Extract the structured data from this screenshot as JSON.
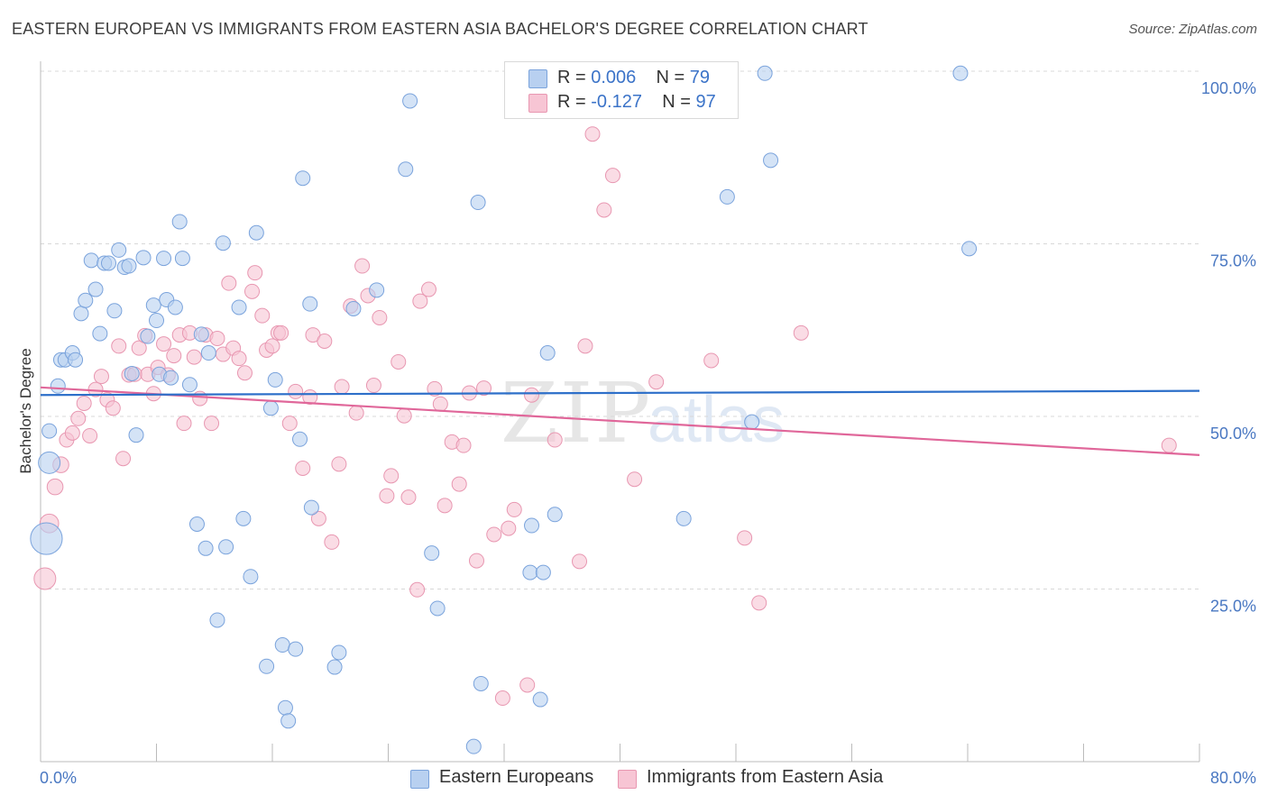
{
  "title": "EASTERN EUROPEAN VS IMMIGRANTS FROM EASTERN ASIA BACHELOR'S DEGREE CORRELATION CHART",
  "source": "Source: ZipAtlas.com",
  "watermark": {
    "zip": "ZIP",
    "atlas": "atlas"
  },
  "legend": {
    "rows": [
      {
        "r_label": "R =",
        "r_value": "0.006",
        "n_label": "N =",
        "n_value": "79"
      },
      {
        "r_label": "R =",
        "r_value": "-0.127",
        "n_label": "N =",
        "n_value": "97"
      }
    ]
  },
  "bottom_legend": {
    "series1": "Eastern Europeans",
    "series2": "Immigrants from Eastern Asia"
  },
  "colors": {
    "blue_fill": "#b8d0f0",
    "blue_stroke": "#7aa3dc",
    "blue_line": "#2d6fc9",
    "pink_fill": "#f7c5d4",
    "pink_stroke": "#e897b1",
    "pink_line": "#e0679a",
    "tick_text": "#4a78c2",
    "grid": "#d8d8d8"
  },
  "chart_data": {
    "type": "scatter",
    "title": "EASTERN EUROPEAN VS IMMIGRANTS FROM EASTERN ASIA BACHELOR'S DEGREE CORRELATION CHART",
    "xlabel": "",
    "ylabel": "Bachelor's Degree",
    "xlim": [
      0,
      80
    ],
    "ylim": [
      0,
      100
    ],
    "x_tick_labels": [
      "0.0%",
      "80.0%"
    ],
    "y_tick_labels": [
      "100.0%",
      "75.0%",
      "50.0%",
      "25.0%"
    ],
    "y_ticks": [
      100,
      75,
      50,
      25
    ],
    "grid": true,
    "legend_position": "top-center",
    "series": [
      {
        "name": "Eastern Europeans",
        "R": 0.006,
        "N": 79,
        "trend": [
          [
            0,
            53.1
          ],
          [
            80,
            53.7
          ]
        ],
        "points": [
          [
            0.6,
            47.9,
            1
          ],
          [
            0.6,
            43.3,
            1.5
          ],
          [
            0.4,
            32.3,
            2.2
          ],
          [
            1.2,
            54.4,
            1
          ],
          [
            1.4,
            58.2,
            1
          ],
          [
            1.7,
            58.2,
            1
          ],
          [
            2.2,
            59.2,
            1
          ],
          [
            2.4,
            58.2,
            1
          ],
          [
            2.8,
            64.9,
            1
          ],
          [
            3.1,
            66.8,
            1
          ],
          [
            3.5,
            72.6,
            1
          ],
          [
            3.8,
            68.4,
            1
          ],
          [
            4.1,
            62.0,
            1
          ],
          [
            4.4,
            72.2,
            1
          ],
          [
            4.7,
            72.2,
            1
          ],
          [
            5.1,
            65.3,
            1
          ],
          [
            5.4,
            74.1,
            1
          ],
          [
            5.8,
            71.6,
            1
          ],
          [
            6.1,
            71.8,
            1
          ],
          [
            6.3,
            56.2,
            1
          ],
          [
            6.6,
            47.3,
            1
          ],
          [
            7.1,
            73.0,
            1
          ],
          [
            7.4,
            61.6,
            1
          ],
          [
            7.8,
            66.1,
            1
          ],
          [
            8.0,
            63.9,
            1
          ],
          [
            8.2,
            56.1,
            1
          ],
          [
            8.5,
            72.9,
            1
          ],
          [
            8.7,
            66.9,
            1
          ],
          [
            9.0,
            55.6,
            1
          ],
          [
            9.3,
            65.8,
            1
          ],
          [
            9.6,
            78.2,
            1
          ],
          [
            9.8,
            72.9,
            1
          ],
          [
            10.3,
            54.6,
            1
          ],
          [
            10.8,
            34.4,
            1
          ],
          [
            11.1,
            61.9,
            1
          ],
          [
            11.4,
            30.9,
            1
          ],
          [
            11.6,
            59.2,
            1
          ],
          [
            12.2,
            20.5,
            1
          ],
          [
            12.6,
            75.1,
            1
          ],
          [
            12.8,
            31.1,
            1
          ],
          [
            13.7,
            65.8,
            1
          ],
          [
            14.0,
            35.2,
            1
          ],
          [
            14.5,
            26.8,
            1
          ],
          [
            14.9,
            76.6,
            1
          ],
          [
            15.6,
            13.8,
            1
          ],
          [
            15.9,
            51.2,
            1
          ],
          [
            16.2,
            55.3,
            1
          ],
          [
            16.7,
            16.9,
            1
          ],
          [
            16.9,
            7.8,
            1
          ],
          [
            17.1,
            5.9,
            1
          ],
          [
            17.6,
            16.3,
            1
          ],
          [
            17.9,
            46.7,
            1
          ],
          [
            18.1,
            84.5,
            1
          ],
          [
            18.6,
            66.3,
            1
          ],
          [
            18.7,
            36.8,
            1
          ],
          [
            20.3,
            13.7,
            1
          ],
          [
            20.6,
            15.8,
            1
          ],
          [
            21.6,
            65.6,
            1
          ],
          [
            23.2,
            68.3,
            1
          ],
          [
            25.2,
            85.8,
            1
          ],
          [
            25.5,
            95.7,
            1
          ],
          [
            27.0,
            30.2,
            1
          ],
          [
            27.4,
            22.2,
            1
          ],
          [
            29.9,
            2.2,
            1
          ],
          [
            30.2,
            81.0,
            1
          ],
          [
            30.4,
            11.3,
            1
          ],
          [
            33.8,
            27.4,
            1
          ],
          [
            33.9,
            34.2,
            1
          ],
          [
            34.5,
            9.0,
            1
          ],
          [
            34.7,
            27.4,
            1
          ],
          [
            35.0,
            59.2,
            1
          ],
          [
            35.5,
            35.8,
            1
          ],
          [
            44.4,
            35.2,
            1
          ],
          [
            47.4,
            81.8,
            1
          ],
          [
            49.1,
            49.2,
            1
          ],
          [
            50.0,
            99.7,
            1
          ],
          [
            50.4,
            87.1,
            1
          ],
          [
            63.5,
            99.7,
            1
          ],
          [
            64.1,
            74.3,
            1
          ]
        ]
      },
      {
        "name": "Immigrants from Eastern Asia",
        "R": -0.127,
        "N": 97,
        "trend": [
          [
            0,
            54.2
          ],
          [
            80,
            44.4
          ]
        ],
        "points": [
          [
            0.3,
            26.5,
            1.5
          ],
          [
            0.6,
            34.5,
            1.3
          ],
          [
            1.0,
            39.8,
            1.1
          ],
          [
            1.4,
            43.0,
            1.1
          ],
          [
            1.8,
            46.6,
            1
          ],
          [
            2.2,
            47.6,
            1
          ],
          [
            2.6,
            49.7,
            1
          ],
          [
            3.0,
            51.9,
            1
          ],
          [
            3.4,
            47.2,
            1
          ],
          [
            3.8,
            53.9,
            1
          ],
          [
            4.2,
            55.8,
            1
          ],
          [
            4.6,
            52.4,
            1
          ],
          [
            5.0,
            51.2,
            1
          ],
          [
            5.4,
            60.2,
            1
          ],
          [
            5.7,
            43.9,
            1
          ],
          [
            6.1,
            56.0,
            1
          ],
          [
            6.5,
            56.1,
            1
          ],
          [
            6.8,
            59.9,
            1
          ],
          [
            7.2,
            61.7,
            1
          ],
          [
            7.4,
            56.1,
            1
          ],
          [
            7.8,
            53.3,
            1
          ],
          [
            8.1,
            57.1,
            1
          ],
          [
            8.5,
            60.5,
            1
          ],
          [
            8.8,
            56.0,
            1
          ],
          [
            9.2,
            58.8,
            1
          ],
          [
            9.6,
            61.8,
            1
          ],
          [
            9.9,
            49.0,
            1
          ],
          [
            10.3,
            62.1,
            1
          ],
          [
            10.6,
            58.6,
            1
          ],
          [
            11.0,
            52.6,
            1
          ],
          [
            11.4,
            61.8,
            1
          ],
          [
            11.8,
            49.0,
            1
          ],
          [
            12.2,
            61.3,
            1
          ],
          [
            12.6,
            59.0,
            1
          ],
          [
            13.0,
            69.3,
            1
          ],
          [
            13.3,
            59.9,
            1
          ],
          [
            13.7,
            58.4,
            1
          ],
          [
            14.1,
            56.3,
            1
          ],
          [
            14.6,
            68.1,
            1
          ],
          [
            14.8,
            70.8,
            1
          ],
          [
            15.3,
            64.6,
            1
          ],
          [
            15.6,
            59.6,
            1
          ],
          [
            16.0,
            60.2,
            1
          ],
          [
            16.4,
            62.1,
            1
          ],
          [
            16.6,
            62.1,
            1
          ],
          [
            17.2,
            49.0,
            1
          ],
          [
            17.6,
            53.6,
            1
          ],
          [
            18.1,
            42.5,
            1
          ],
          [
            18.6,
            52.8,
            1
          ],
          [
            18.8,
            61.8,
            1
          ],
          [
            19.2,
            35.2,
            1
          ],
          [
            19.6,
            60.9,
            1
          ],
          [
            20.1,
            31.8,
            1
          ],
          [
            20.6,
            43.1,
            1
          ],
          [
            20.8,
            54.3,
            1
          ],
          [
            21.4,
            66.0,
            1
          ],
          [
            21.8,
            50.5,
            1
          ],
          [
            22.2,
            71.8,
            1
          ],
          [
            22.6,
            67.5,
            1
          ],
          [
            23.0,
            54.5,
            1
          ],
          [
            23.4,
            64.3,
            1
          ],
          [
            23.9,
            38.5,
            1
          ],
          [
            24.2,
            41.4,
            1
          ],
          [
            24.7,
            57.9,
            1
          ],
          [
            25.1,
            50.1,
            1
          ],
          [
            25.4,
            38.3,
            1
          ],
          [
            26.0,
            24.9,
            1
          ],
          [
            26.2,
            66.7,
            1
          ],
          [
            26.8,
            68.4,
            1
          ],
          [
            27.2,
            54.0,
            1
          ],
          [
            27.6,
            51.8,
            1
          ],
          [
            27.9,
            37.1,
            1
          ],
          [
            28.4,
            46.3,
            1
          ],
          [
            28.9,
            40.2,
            1
          ],
          [
            29.2,
            45.8,
            1
          ],
          [
            29.6,
            53.4,
            1
          ],
          [
            30.1,
            29.1,
            1
          ],
          [
            30.6,
            54.1,
            1
          ],
          [
            31.3,
            32.9,
            1
          ],
          [
            31.9,
            9.2,
            1
          ],
          [
            32.3,
            33.8,
            1
          ],
          [
            32.7,
            36.5,
            1
          ],
          [
            33.6,
            11.1,
            1
          ],
          [
            33.9,
            53.1,
            1
          ],
          [
            35.5,
            46.6,
            1
          ],
          [
            37.2,
            29.0,
            1
          ],
          [
            37.6,
            60.2,
            1
          ],
          [
            38.1,
            90.9,
            1
          ],
          [
            38.9,
            79.9,
            1
          ],
          [
            39.5,
            84.9,
            1
          ],
          [
            41.0,
            40.9,
            1
          ],
          [
            42.5,
            55.0,
            1
          ],
          [
            46.3,
            58.1,
            1
          ],
          [
            48.6,
            32.4,
            1
          ],
          [
            49.6,
            23.0,
            1
          ],
          [
            52.5,
            62.1,
            1
          ],
          [
            77.9,
            45.8,
            1
          ]
        ]
      }
    ]
  }
}
